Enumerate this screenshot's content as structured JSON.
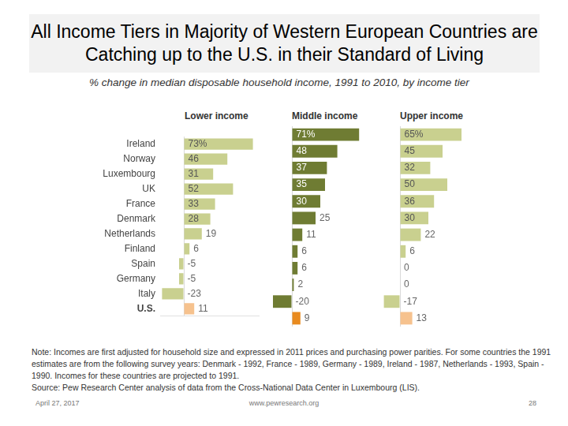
{
  "title": "All Income Tiers in Majority of Western European Countries are Catching up to the U.S. in their Standard of Living",
  "subtitle": "% change in median disposable household income, 1991 to 2010, by income tier",
  "chart_data": [
    {
      "type": "bar",
      "title": "Lower income",
      "orientation": "horizontal",
      "categories": [
        "Ireland",
        "Norway",
        "Luxembourg",
        "UK",
        "France",
        "Denmark",
        "Netherlands",
        "Finland",
        "Spain",
        "Germany",
        "Italy",
        "U.S."
      ],
      "values": [
        73,
        46,
        31,
        52,
        33,
        28,
        19,
        6,
        -5,
        -5,
        -23,
        11
      ],
      "value_labels": [
        "73%",
        "46",
        "31",
        "52",
        "33",
        "28",
        "19",
        "6",
        "-5",
        "-5",
        "-23",
        "11"
      ],
      "colors": [
        "#c9d08f",
        "#c9d08f",
        "#c9d08f",
        "#c9d08f",
        "#c9d08f",
        "#c9d08f",
        "#c9d08f",
        "#c9d08f",
        "#c9d08f",
        "#c9d08f",
        "#c9d08f",
        "#f6c28e"
      ],
      "xlim": [
        -25,
        80
      ],
      "xticks": [
        0
      ],
      "grid": true,
      "data_labels": true,
      "tick_labels": "y"
    },
    {
      "type": "bar",
      "title": "Middle income",
      "orientation": "horizontal",
      "categories": [
        "Ireland",
        "Norway",
        "Luxembourg",
        "UK",
        "France",
        "Denmark",
        "Netherlands",
        "Finland",
        "Spain",
        "Germany",
        "Italy",
        "U.S."
      ],
      "values": [
        71,
        48,
        37,
        35,
        30,
        25,
        11,
        6,
        6,
        2,
        -20,
        9
      ],
      "value_labels": [
        "71%",
        "48",
        "37",
        "35",
        "30",
        "25",
        "11",
        "6",
        "6",
        "2",
        "-20",
        "9"
      ],
      "colors": [
        "#6f7c33",
        "#6f7c33",
        "#6f7c33",
        "#6f7c33",
        "#6f7c33",
        "#6f7c33",
        "#6f7c33",
        "#6f7c33",
        "#6f7c33",
        "#6f7c33",
        "#6f7c33",
        "#e98b1f"
      ],
      "xlim": [
        -25,
        80
      ],
      "xticks": [
        0
      ],
      "grid": true,
      "data_labels": true,
      "tick_labels": false
    },
    {
      "type": "bar",
      "title": "Upper income",
      "orientation": "horizontal",
      "categories": [
        "Ireland",
        "Norway",
        "Luxembourg",
        "UK",
        "France",
        "Denmark",
        "Netherlands",
        "Finland",
        "Spain",
        "Germany",
        "Italy",
        "U.S."
      ],
      "values": [
        65,
        45,
        32,
        50,
        36,
        30,
        22,
        6,
        0,
        0,
        -17,
        13
      ],
      "value_labels": [
        "65%",
        "45",
        "32",
        "50",
        "36",
        "30",
        "22",
        "6",
        "0",
        "0",
        "-17",
        "13"
      ],
      "colors": [
        "#c9d08f",
        "#c9d08f",
        "#c9d08f",
        "#c9d08f",
        "#c9d08f",
        "#c9d08f",
        "#c9d08f",
        "#c9d08f",
        "#c9d08f",
        "#c9d08f",
        "#c9d08f",
        "#f6c28e"
      ],
      "xlim": [
        -25,
        80
      ],
      "xticks": [
        0
      ],
      "grid": true,
      "data_labels": true,
      "tick_labels": false
    }
  ],
  "note": "Note: Incomes are first adjusted for household size and expressed in 2011 prices and purchasing power parities. For some countries the 1991 estimates are from the following survey years: Denmark - 1992, France - 1989, Germany - 1989, Ireland - 1987, Netherlands - 1993, Spain - 1990. Incomes for these countries are projected to 1991.",
  "source": "Source: Pew Research Center analysis of data from the Cross-National Data Center in Luxembourg (LIS).",
  "footer": {
    "date": "April 27, 2017",
    "url": "www.pewresearch.org",
    "page": 28
  }
}
